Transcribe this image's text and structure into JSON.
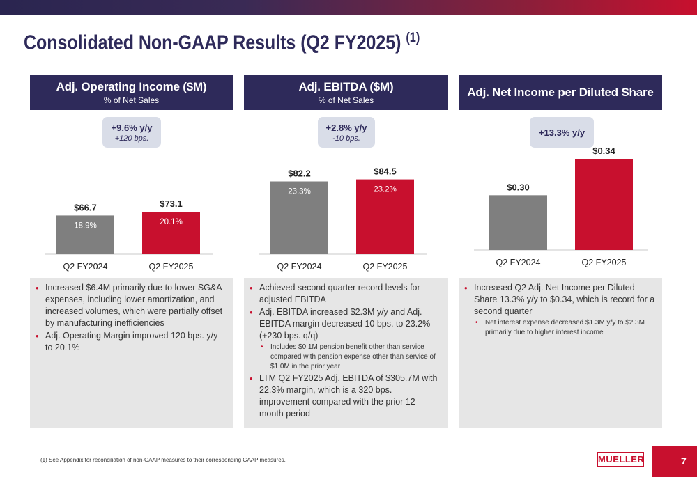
{
  "title": "Consolidated Non-GAAP Results (Q2 FY2025)",
  "title_note": "(1)",
  "panels": [
    {
      "header": "Adj. Operating Income ($M)",
      "subheader": "% of Net Sales",
      "badge_main": "+9.6% y/y",
      "badge_sub": "+120 bps.",
      "bullets": [
        {
          "text": "Increased $6.4M primarily due to lower SG&A expenses, including lower amortization, and increased volumes, which were partially offset by manufacturing inefficiencies",
          "level": 1
        },
        {
          "text": "Adj. Operating Margin improved 120 bps. y/y to 20.1%",
          "level": 1
        }
      ]
    },
    {
      "header": "Adj. EBITDA ($M)",
      "subheader": "% of Net Sales",
      "badge_main": "+2.8% y/y",
      "badge_sub": "-10 bps.",
      "bullets": [
        {
          "text": "Achieved second quarter record levels for adjusted EBITDA",
          "level": 1
        },
        {
          "text": "Adj. EBITDA increased $2.3M y/y and Adj. EBITDA margin decreased 10 bps. to 23.2% (+230 bps. q/q)",
          "level": 1
        },
        {
          "text": "Includes $0.1M pension benefit other than service compared with pension expense other than service of $1.0M in the prior year",
          "level": 2
        },
        {
          "text": "LTM Q2 FY2025 Adj. EBITDA of $305.7M with 22.3% margin, which is a 320 bps. improvement compared with the prior 12-month period",
          "level": 1
        }
      ]
    },
    {
      "header": "Adj. Net Income per Diluted Share",
      "subheader": "",
      "badge_main": "+13.3% y/y",
      "badge_sub": "",
      "bullets": [
        {
          "text": "Increased Q2 Adj. Net Income per Diluted Share 13.3% y/y to $0.34, which is record for a second quarter",
          "level": 1
        },
        {
          "text": "Net interest expense decreased $1.3M y/y to $2.3M primarily due to higher interest income",
          "level": 2
        }
      ]
    }
  ],
  "chart_data": [
    {
      "type": "bar",
      "categories": [
        "Q2 FY2024",
        "Q2 FY2025"
      ],
      "values": [
        66.7,
        73.1
      ],
      "value_labels": [
        "$66.7",
        "$73.1"
      ],
      "inner_labels": [
        "18.9%",
        "20.1%"
      ],
      "colors": [
        "#7f7f7f",
        "#c8102e"
      ],
      "ylim": [
        0,
        180
      ]
    },
    {
      "type": "bar",
      "categories": [
        "Q2 FY2024",
        "Q2 FY2025"
      ],
      "values": [
        82.2,
        84.5
      ],
      "value_labels": [
        "$82.2",
        "$84.5"
      ],
      "inner_labels": [
        "23.3%",
        "23.2%"
      ],
      "colors": [
        "#7f7f7f",
        "#c8102e"
      ],
      "ylim": [
        0,
        118
      ]
    },
    {
      "type": "bar",
      "categories": [
        "Q2 FY2024",
        "Q2 FY2025"
      ],
      "values": [
        0.3,
        0.34
      ],
      "value_labels": [
        "$0.30",
        "$0.34"
      ],
      "inner_labels": [
        "",
        ""
      ],
      "colors": [
        "#7f7f7f",
        "#c8102e"
      ],
      "ylim": [
        0.2398,
        0.35
      ]
    }
  ],
  "footnote": "(1)  See Appendix for reconciliation of non-GAAP measures to their corresponding GAAP measures.",
  "logo_text": "MUELLER",
  "page_number": "7",
  "colors": {
    "navy": "#2e2a5a",
    "red": "#c8102e",
    "gray": "#7f7f7f",
    "panel_bg": "#e6e6e6",
    "badge_bg": "#d9dde8"
  }
}
